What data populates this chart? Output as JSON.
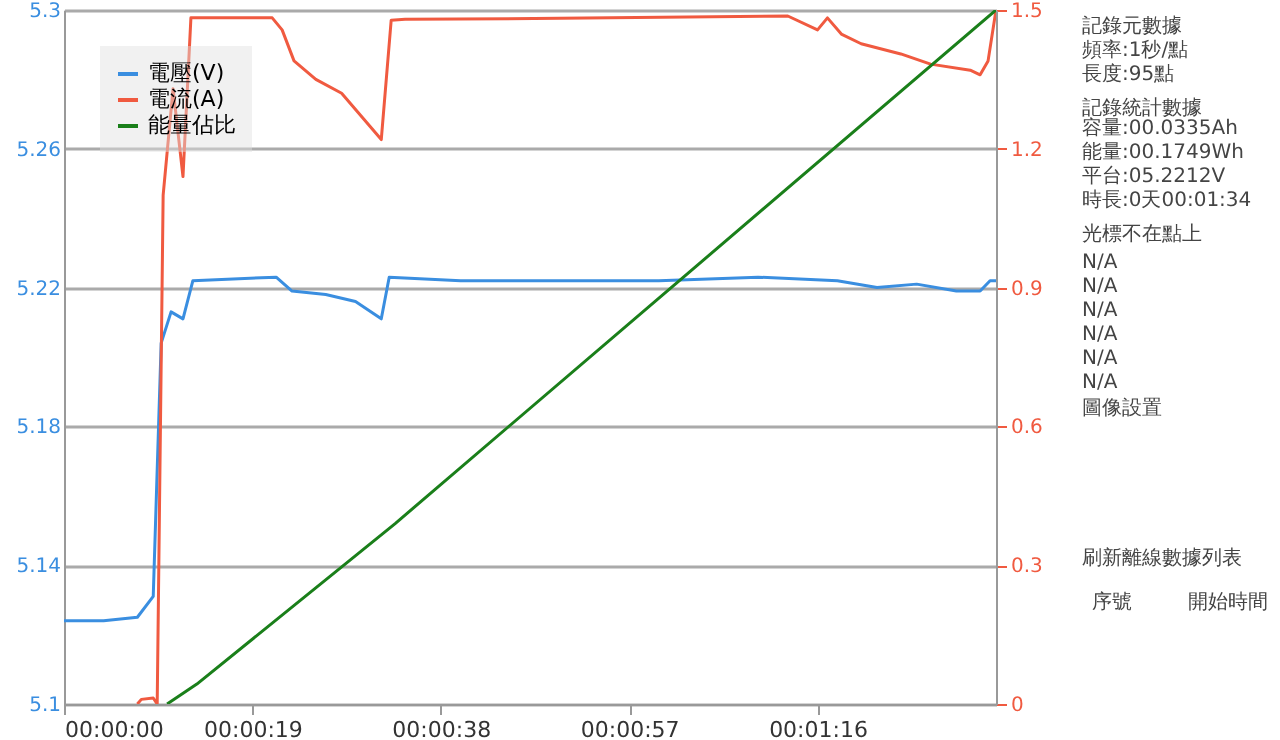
{
  "chart_data": {
    "type": "line",
    "xlim": [
      0,
      94
    ],
    "xticks": [
      {
        "value": 0,
        "label": "00:00:00"
      },
      {
        "value": 19,
        "label": "00:00:19"
      },
      {
        "value": 38,
        "label": "00:00:38"
      },
      {
        "value": 57,
        "label": "00:00:57"
      },
      {
        "value": 76,
        "label": "00:01:16"
      }
    ],
    "ylim": [
      5.1,
      5.3
    ],
    "yticks": [
      5.1,
      5.14,
      5.18,
      5.22,
      5.26,
      5.3
    ],
    "y2lim": [
      0,
      1.5
    ],
    "y2ticks": [
      0,
      0.3,
      0.6,
      0.9,
      1.2,
      1.5
    ],
    "grid": "y",
    "legend": "top left",
    "marker": "none",
    "line_style": "solid",
    "series": [
      {
        "name": "電壓(V)",
        "color": "#3a8ee0",
        "x": [
          0,
          4,
          7.4,
          9,
          9.8,
          10.8,
          12,
          13,
          21.4,
          23,
          26.4,
          29.4,
          32,
          32.8,
          40,
          50,
          60,
          70,
          78,
          82,
          86,
          90,
          92.4,
          93.4,
          94
        ],
        "values": [
          5.124,
          5.124,
          5.125,
          5.131,
          5.204,
          5.213,
          5.211,
          5.222,
          5.223,
          5.219,
          5.218,
          5.216,
          5.211,
          5.223,
          5.222,
          5.222,
          5.222,
          5.223,
          5.222,
          5.22,
          5.221,
          5.219,
          5.219,
          5.222,
          5.222
        ]
      },
      {
        "name": "電流(A)",
        "color": "#f05a40",
        "axis": "y2",
        "x": [
          7.4,
          7.8,
          9,
          9.4,
          10,
          11,
          12,
          12.8,
          21,
          22,
          23.2,
          25.4,
          28,
          32,
          33,
          34.4,
          50,
          73,
          76,
          77,
          78.4,
          80.4,
          84.4,
          87.4,
          91.4,
          92.4,
          93.2,
          94
        ],
        "values": [
          0,
          0.01,
          0.013,
          0,
          1.1,
          1.33,
          1.14,
          1.483,
          1.483,
          1.457,
          1.39,
          1.35,
          1.32,
          1.22,
          1.478,
          1.48,
          1.482,
          1.487,
          1.457,
          1.483,
          1.448,
          1.427,
          1.405,
          1.383,
          1.37,
          1.36,
          1.39,
          1.5
        ]
      },
      {
        "name": "能量佔比",
        "color": "#1a7f1a",
        "axis": "y2",
        "x": [
          10.4,
          13.4,
          33.4,
          94
        ],
        "values": [
          0,
          0.043,
          0.39,
          1.5
        ]
      }
    ],
    "annotations": [
      "記錄元數據",
      "頻率:1秒/點",
      "長度:95點",
      "記錄統計數據",
      "容量:00.0335Ah",
      "能量:00.1749Wh",
      "平台:05.2212V",
      "時長:0天00:01:34",
      "光標不在點上",
      "N/A",
      "N/A",
      "N/A",
      "N/A",
      "N/A",
      "N/A",
      "圖像設置",
      "刷新離線數據列表",
      "序號",
      "開始時間"
    ]
  }
}
